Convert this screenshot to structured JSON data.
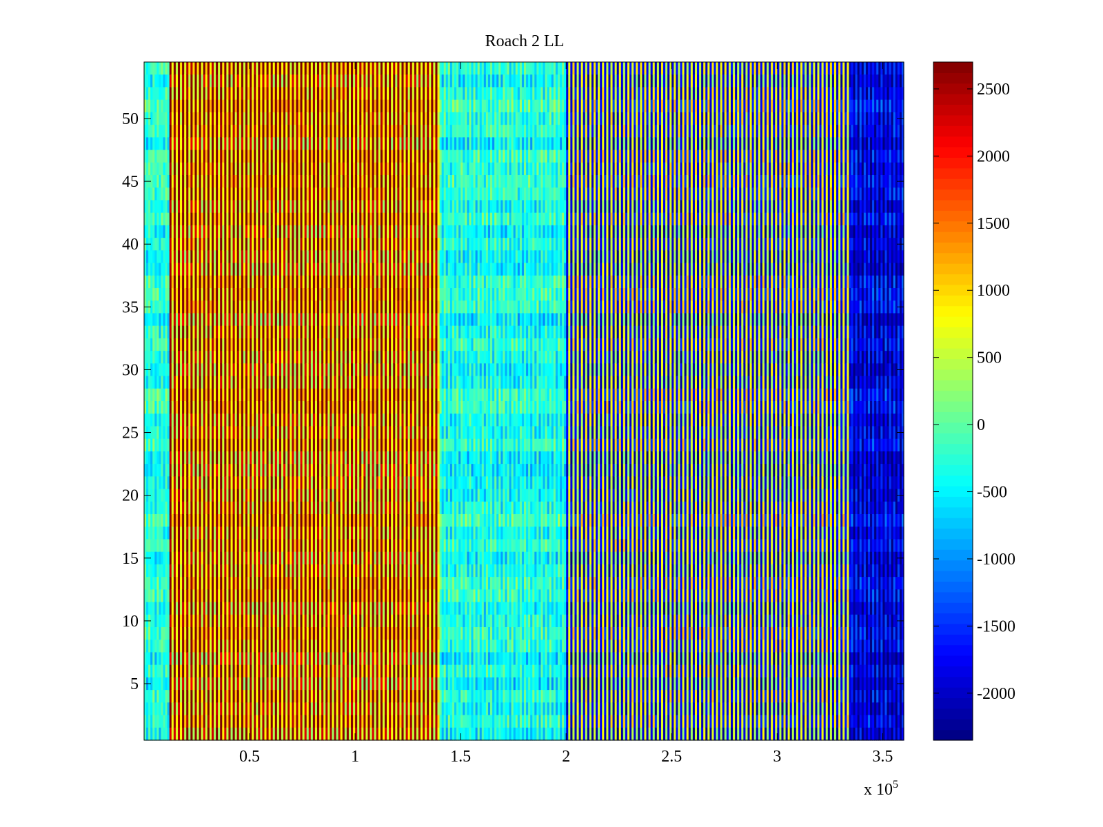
{
  "chart_data": {
    "type": "heatmap",
    "title": "Roach 2 LL",
    "xlabel": "",
    "ylabel": "",
    "x_multiplier_label": "x 10",
    "x_multiplier_exponent": "5",
    "xlim": [
      0,
      3.6
    ],
    "ylim": [
      0.5,
      54.5
    ],
    "x_ticks": [
      0.5,
      1,
      1.5,
      2,
      2.5,
      3,
      3.5
    ],
    "x_tick_labels": [
      "0.5",
      "1",
      "1.5",
      "2",
      "2.5",
      "3",
      "3.5"
    ],
    "y_ticks": [
      5,
      10,
      15,
      20,
      25,
      30,
      35,
      40,
      45,
      50
    ],
    "y_tick_labels": [
      "5",
      "10",
      "15",
      "20",
      "25",
      "30",
      "35",
      "40",
      "45",
      "50"
    ],
    "colorbar": {
      "colormap": "jet",
      "clim": [
        -2350,
        2700
      ],
      "ticks": [
        -2000,
        -1500,
        -1000,
        -500,
        0,
        500,
        1000,
        1500,
        2000,
        2500
      ],
      "tick_labels": [
        "-2000",
        "-1500",
        "-1000",
        "-500",
        "0",
        "500",
        "1000",
        "1500",
        "2000",
        "2500"
      ]
    },
    "rows": 54,
    "columns": 360,
    "column_pattern": "alternating",
    "regions": [
      {
        "x_range": [
          0,
          0.12
        ],
        "even_value": -150,
        "odd_value": -450
      },
      {
        "x_range": [
          0.12,
          1.4
        ],
        "even_value": 2600,
        "odd_value": 700
      },
      {
        "x_range": [
          1.4,
          2.0
        ],
        "even_value": -150,
        "odd_value": -550
      },
      {
        "x_range": [
          2.0,
          3.35
        ],
        "even_value": -1900,
        "odd_value": 650
      },
      {
        "x_range": [
          3.35,
          3.6
        ],
        "even_value": -2200,
        "odd_value": -1600
      }
    ]
  },
  "colors": {
    "axis": "#000000",
    "background": "#ffffff"
  }
}
